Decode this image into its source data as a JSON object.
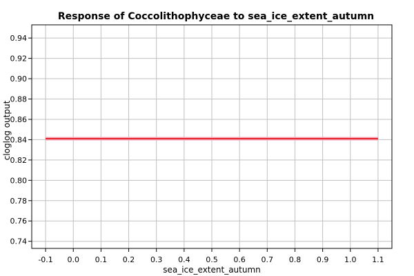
{
  "chart_data": {
    "type": "line",
    "title": "Response of Coccolithophyceae to sea_ice_extent_autumn",
    "xlabel": "sea_ice_extent_autumn",
    "ylabel": "cloglog output",
    "xlim": [
      -0.15,
      1.15
    ],
    "ylim": [
      0.733,
      0.953
    ],
    "x_ticks": [
      -0.1,
      0.0,
      0.1,
      0.2,
      0.3,
      0.4,
      0.5,
      0.6,
      0.7,
      0.8,
      0.9,
      1.0,
      1.1
    ],
    "x_tick_labels": [
      "-0.1",
      "0.0",
      "0.1",
      "0.2",
      "0.3",
      "0.4",
      "0.5",
      "0.6",
      "0.7",
      "0.8",
      "0.9",
      "1.0",
      "1.1"
    ],
    "y_ticks": [
      0.74,
      0.76,
      0.78,
      0.8,
      0.82,
      0.84,
      0.86,
      0.88,
      0.9,
      0.92,
      0.94
    ],
    "y_tick_labels": [
      "0.74",
      "0.76",
      "0.78",
      "0.80",
      "0.82",
      "0.84",
      "0.86",
      "0.88",
      "0.90",
      "0.92",
      "0.94"
    ],
    "grid": true,
    "series": [
      {
        "x": [
          -0.1,
          1.1
        ],
        "values": [
          0.841,
          0.841
        ],
        "color": "#e8202a",
        "band_color": "#f4a8b8"
      }
    ]
  }
}
